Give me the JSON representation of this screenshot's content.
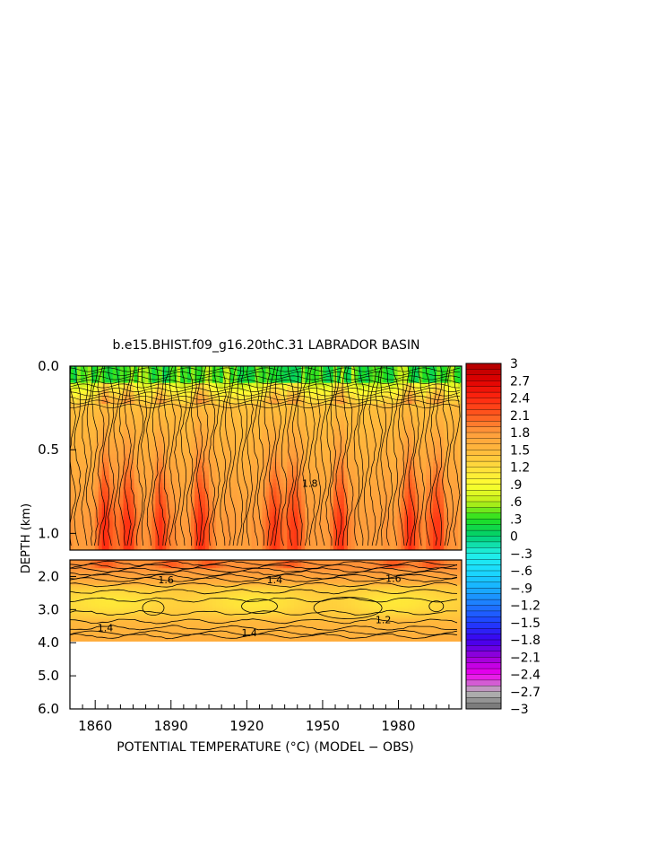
{
  "chart_data": {
    "type": "heatmap",
    "title": "b.e15.BHIST.f09_g16.20thC.31 LABRADOR BASIN",
    "xlabel": "POTENTIAL TEMPERATURE (°C) (MODEL − OBS)",
    "ylabel": "DEPTH (km)",
    "xlim": [
      1850,
      2005
    ],
    "x_ticks": [
      "1860",
      "1890",
      "1920",
      "1950",
      "1980"
    ],
    "x_tick_values": [
      1860,
      1890,
      1920,
      1950,
      1980
    ],
    "upper_panel": {
      "ylim": [
        0.0,
        1.1
      ],
      "y_ticks": [
        "0.0",
        "0.5",
        "1.0"
      ],
      "y_tick_values": [
        0.0,
        0.5,
        1.0
      ]
    },
    "lower_panel": {
      "ylim": [
        1.5,
        6.0
      ],
      "y_ticks": [
        "2.0",
        "3.0",
        "4.0",
        "5.0",
        "6.0"
      ],
      "y_tick_values": [
        2.0,
        3.0,
        4.0,
        5.0,
        6.0
      ],
      "data_bottom_km": 3.9
    },
    "colorbar": {
      "range": [
        -3,
        3
      ],
      "labels": [
        "3",
        "2.7",
        "2.4",
        "2.1",
        "1.8",
        "1.5",
        "1.2",
        ".9",
        ".6",
        ".3",
        "0",
        "−.3",
        "−.6",
        "−.9",
        "−1.2",
        "−1.5",
        "−1.8",
        "−2.1",
        "−2.4",
        "−2.7",
        "−3"
      ],
      "label_values": [
        3,
        2.7,
        2.4,
        2.1,
        1.8,
        1.5,
        1.2,
        0.9,
        0.6,
        0.3,
        0,
        -0.3,
        -0.6,
        -0.9,
        -1.2,
        -1.5,
        -1.8,
        -2.1,
        -2.4,
        -2.7,
        -3
      ]
    },
    "contour_labels": [
      {
        "text": "1.4",
        "x": 1864,
        "depth": 3.55
      },
      {
        "text": "1.4",
        "x": 1921,
        "depth": 3.7
      },
      {
        "text": "1.2",
        "x": 1974,
        "depth": 3.3
      },
      {
        "text": "1.4",
        "x": 1931,
        "depth": 2.1
      },
      {
        "text": "1.6",
        "x": 1888,
        "depth": 2.1
      },
      {
        "text": "1.6",
        "x": 1978,
        "depth": 2.05
      },
      {
        "text": "1.8",
        "x": 1945,
        "depth": 0.7
      }
    ]
  }
}
